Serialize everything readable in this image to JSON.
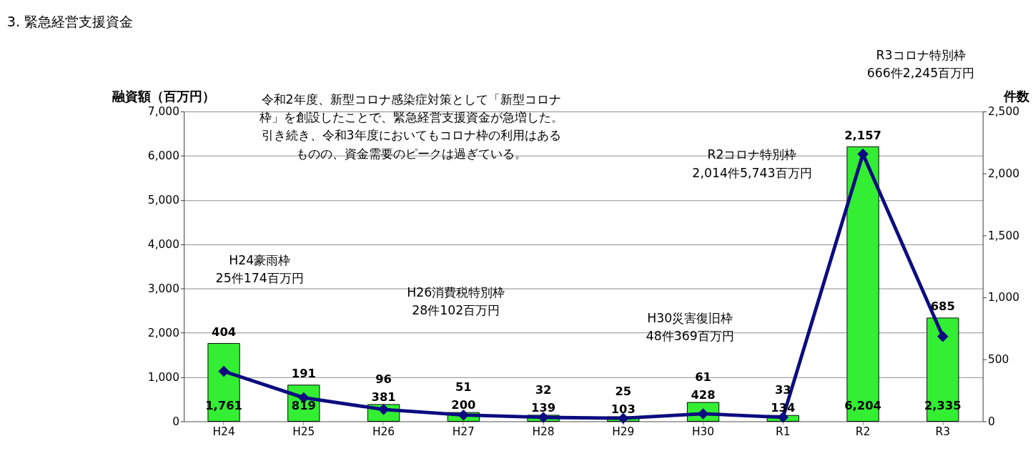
{
  "chart_data": {
    "type": "bar",
    "title": "3. 緊急経営支援資金",
    "ylabel": "融資額（百万円）",
    "y2label": "件数",
    "categories": [
      "H24",
      "H25",
      "H26",
      "H27",
      "H28",
      "H29",
      "H30",
      "R1",
      "R2",
      "R3"
    ],
    "series": [
      {
        "color": "#33ee33",
        "values": [
          1761,
          819,
          381,
          200,
          139,
          103,
          428,
          134,
          6204,
          2335
        ],
        "value_labels": [
          "1,761",
          "819",
          "381",
          "200",
          "139",
          "103",
          "428",
          "134",
          "6,204",
          "2,335"
        ]
      },
      {
        "type": "line",
        "axis": "y2",
        "color": "#0c0c80",
        "values": [
          404,
          191,
          96,
          51,
          32,
          25,
          61,
          33,
          2157,
          685
        ],
        "value_labels": [
          "404",
          "191",
          "96",
          "51",
          "32",
          "25",
          "61",
          "33",
          "2,157",
          "685"
        ]
      }
    ],
    "ylim": [
      0,
      7000
    ],
    "yticks": [
      0,
      {
        "value": 1000,
        "label": "1,000"
      },
      {
        "value": 2000,
        "label": "2,000"
      },
      {
        "value": 3000,
        "label": "3,000"
      },
      {
        "value": 4000,
        "label": "4,000"
      },
      {
        "value": 5000,
        "label": "5,000"
      },
      {
        "value": 6000,
        "label": "6,000"
      },
      {
        "value": 7000,
        "label": "7,000"
      }
    ],
    "y2lim": [
      0,
      2500
    ],
    "y2ticks": [
      0,
      500,
      {
        "value": 1000,
        "label": "1,000"
      },
      {
        "value": 1500,
        "label": "1,500"
      },
      {
        "value": 2000,
        "label": "2,000"
      },
      {
        "value": 2500,
        "label": "2,500"
      }
    ],
    "grid": "y",
    "marker": "diamond",
    "line_style": "solid",
    "annotations": [
      "令和2年度、新型コロナ感染症対策として「新型コロナ枠」を創設したことで、緊急経営支援資金が急増した。引き続き、令和3年度においてもコロナ枠の利用はあるものの、資金需要のピークは過ぎている。",
      "R3コロナ特別枠\n666件2,245百万円",
      "R2コロナ特別枠\n2,014件5,743百万円",
      "H24豪雨枠\n25件174百万円",
      "H26消費税特別枠\n28件102百万円",
      "H30災害復旧枠\n48件369百万円"
    ]
  }
}
